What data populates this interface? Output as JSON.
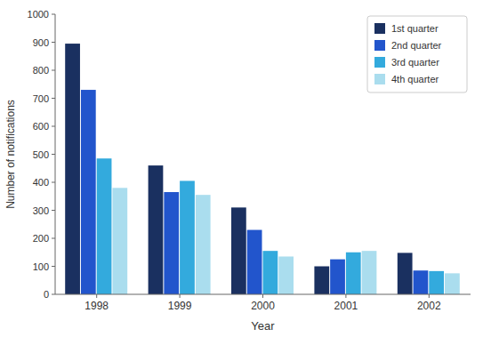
{
  "chart_data": {
    "type": "bar",
    "xlabel": "Year",
    "ylabel": "Number of notifications",
    "categories": [
      "1998",
      "1999",
      "2000",
      "2001",
      "2002"
    ],
    "series": [
      {
        "name": "1st quarter",
        "color": "#1a3060",
        "values": [
          895,
          460,
          310,
          100,
          148
        ]
      },
      {
        "name": "2nd quarter",
        "color": "#2255cc",
        "values": [
          730,
          365,
          230,
          125,
          85
        ]
      },
      {
        "name": "3rd quarter",
        "color": "#33aadd",
        "values": [
          485,
          405,
          155,
          150,
          83
        ]
      },
      {
        "name": "4th quarter",
        "color": "#aaddee",
        "values": [
          380,
          355,
          135,
          155,
          75
        ]
      }
    ],
    "ylim": [
      0,
      1000
    ],
    "yticks": [
      0,
      100,
      200,
      300,
      400,
      500,
      600,
      700,
      800,
      900,
      1000
    ],
    "grid": false,
    "legend": "upper-right"
  }
}
